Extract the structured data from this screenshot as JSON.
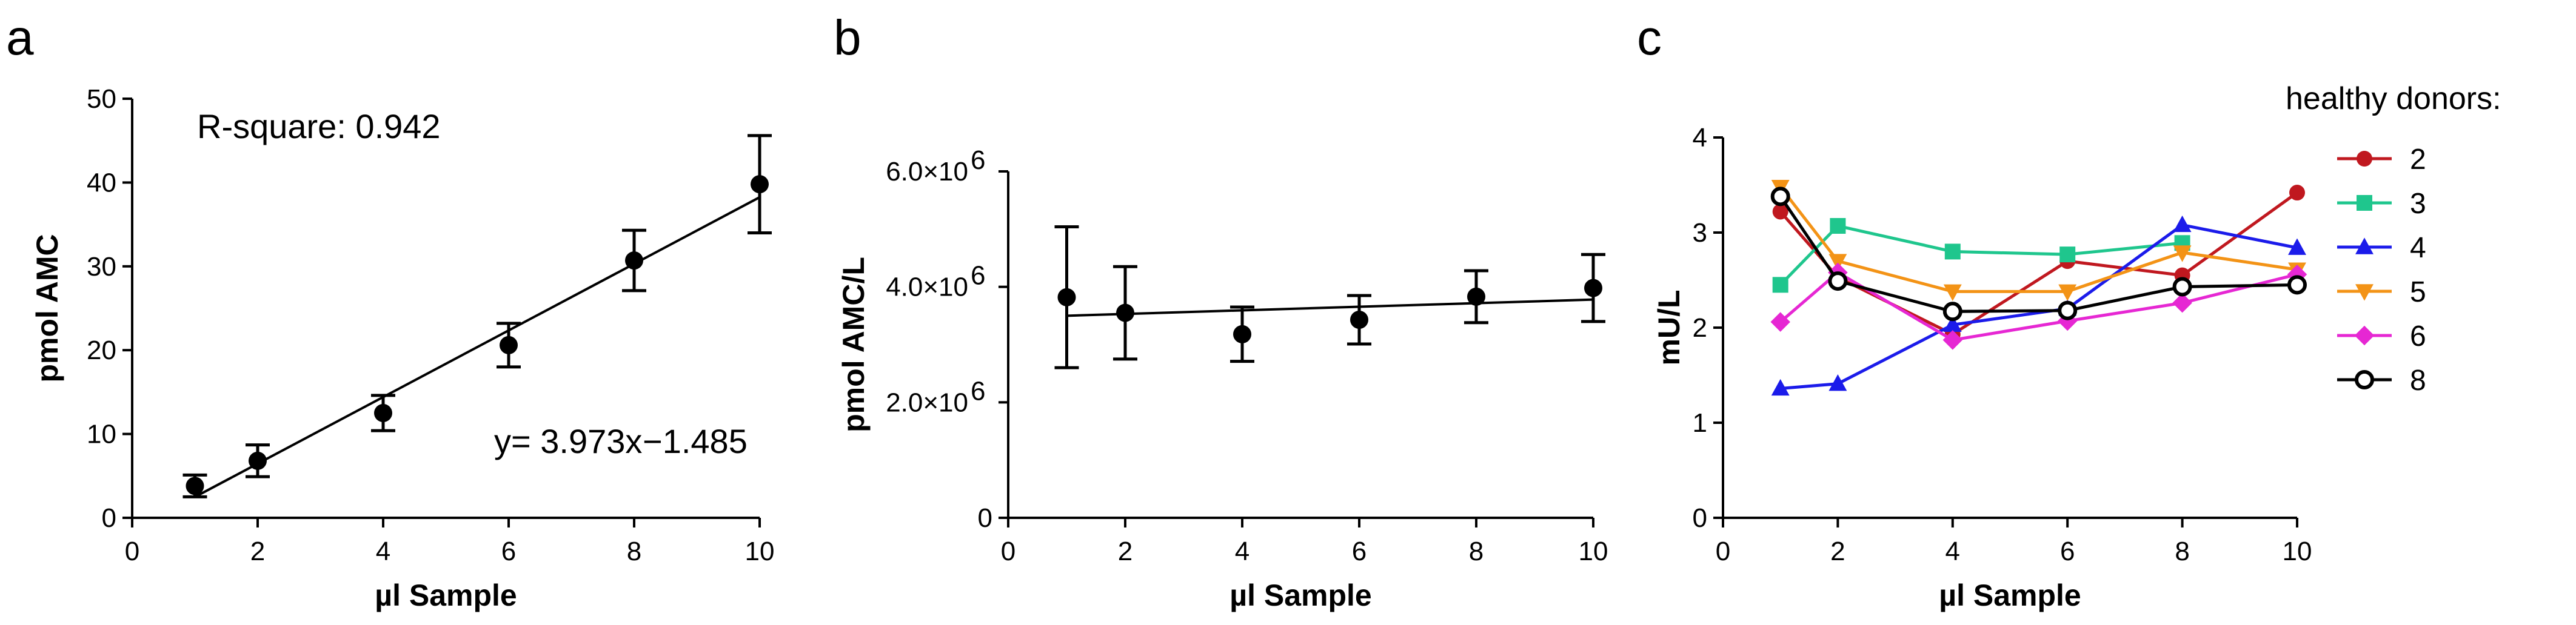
{
  "chart_data": [
    {
      "type": "scatter",
      "panel": "a",
      "xlabel": "µl Sample",
      "ylabel": "pmol AMC",
      "xlim": [
        0,
        10
      ],
      "ylim": [
        0,
        50
      ],
      "xticks": [
        "0",
        "2",
        "4",
        "6",
        "8",
        "10"
      ],
      "yticks": [
        "0",
        "10",
        "20",
        "30",
        "40",
        "50"
      ],
      "series": [
        {
          "x": [
            1,
            2,
            4,
            6,
            8,
            10
          ],
          "y": [
            3.8,
            6.8,
            12.5,
            20.6,
            30.7,
            39.8
          ],
          "err": [
            1.3,
            1.9,
            2.1,
            2.6,
            3.6,
            5.8
          ],
          "color": "#000000"
        }
      ],
      "fit": {
        "slope": 3.973,
        "intercept": -1.485,
        "x_range": [
          1,
          10
        ]
      },
      "annotations": {
        "r_square": "R-square: 0.942",
        "equation_a": "y= 3.973x",
        "equation_b": "−1.485"
      },
      "grid": false
    },
    {
      "type": "scatter",
      "panel": "b",
      "xlabel": "µl Sample",
      "ylabel": "pmol AMC/L",
      "xlim": [
        0,
        10
      ],
      "ylim": [
        0,
        6000000
      ],
      "xticks": [
        "0",
        "2",
        "4",
        "6",
        "8",
        "10"
      ],
      "yticks": [
        {
          "value": 0,
          "label": "0"
        },
        {
          "value": 2000000,
          "label": "2.0×10",
          "exp": "6"
        },
        {
          "value": 4000000,
          "label": "4.0×10",
          "exp": "6"
        },
        {
          "value": 6000000,
          "label": "6.0×10",
          "exp": "6"
        }
      ],
      "series": [
        {
          "x": [
            1,
            2,
            4,
            6,
            8,
            10
          ],
          "y": [
            3820000,
            3550000,
            3180000,
            3430000,
            3830000,
            3980000
          ],
          "err": [
            1220000,
            800000,
            470000,
            420000,
            450000,
            580000
          ],
          "color": "#000000"
        }
      ],
      "fit": {
        "y_at_x1": 3500000,
        "y_at_x10": 3780000,
        "x_range": [
          1,
          10
        ]
      },
      "grid": false
    },
    {
      "type": "line",
      "panel": "c",
      "xlabel": "µl Sample",
      "ylabel": "mU/L",
      "xlim": [
        0,
        10
      ],
      "ylim": [
        0,
        4
      ],
      "xticks": [
        "0",
        "2",
        "4",
        "6",
        "8",
        "10"
      ],
      "yticks": [
        "0",
        "1",
        "2",
        "3",
        "4"
      ],
      "legend": {
        "title": "healthy donors:",
        "position": "right"
      },
      "x": [
        1,
        2,
        4,
        6,
        8,
        10
      ],
      "series": [
        {
          "name": "2",
          "color": "#c0181f",
          "marker": "circle",
          "values": [
            3.22,
            2.53,
            1.93,
            2.7,
            2.55,
            3.42
          ]
        },
        {
          "name": "3",
          "color": "#1fc68d",
          "marker": "square",
          "values": [
            2.45,
            3.07,
            2.8,
            2.77,
            2.89,
            null
          ]
        },
        {
          "name": "4",
          "color": "#1b1bea",
          "marker": "triangle-up",
          "values": [
            1.36,
            1.41,
            2.03,
            2.2,
            3.08,
            2.84
          ]
        },
        {
          "name": "5",
          "color": "#f39316",
          "marker": "triangle-down",
          "values": [
            3.48,
            2.7,
            2.38,
            2.38,
            2.79,
            2.61
          ]
        },
        {
          "name": "6",
          "color": "#e627d3",
          "marker": "diamond",
          "values": [
            2.06,
            2.58,
            1.87,
            2.07,
            2.26,
            2.56
          ]
        },
        {
          "name": "8",
          "color": "#000000",
          "marker": "open-circle",
          "values": [
            3.38,
            2.49,
            2.17,
            2.18,
            2.43,
            2.45
          ]
        }
      ],
      "grid": false
    }
  ],
  "panel_labels": {
    "a": "a",
    "b": "b",
    "c": "c"
  }
}
